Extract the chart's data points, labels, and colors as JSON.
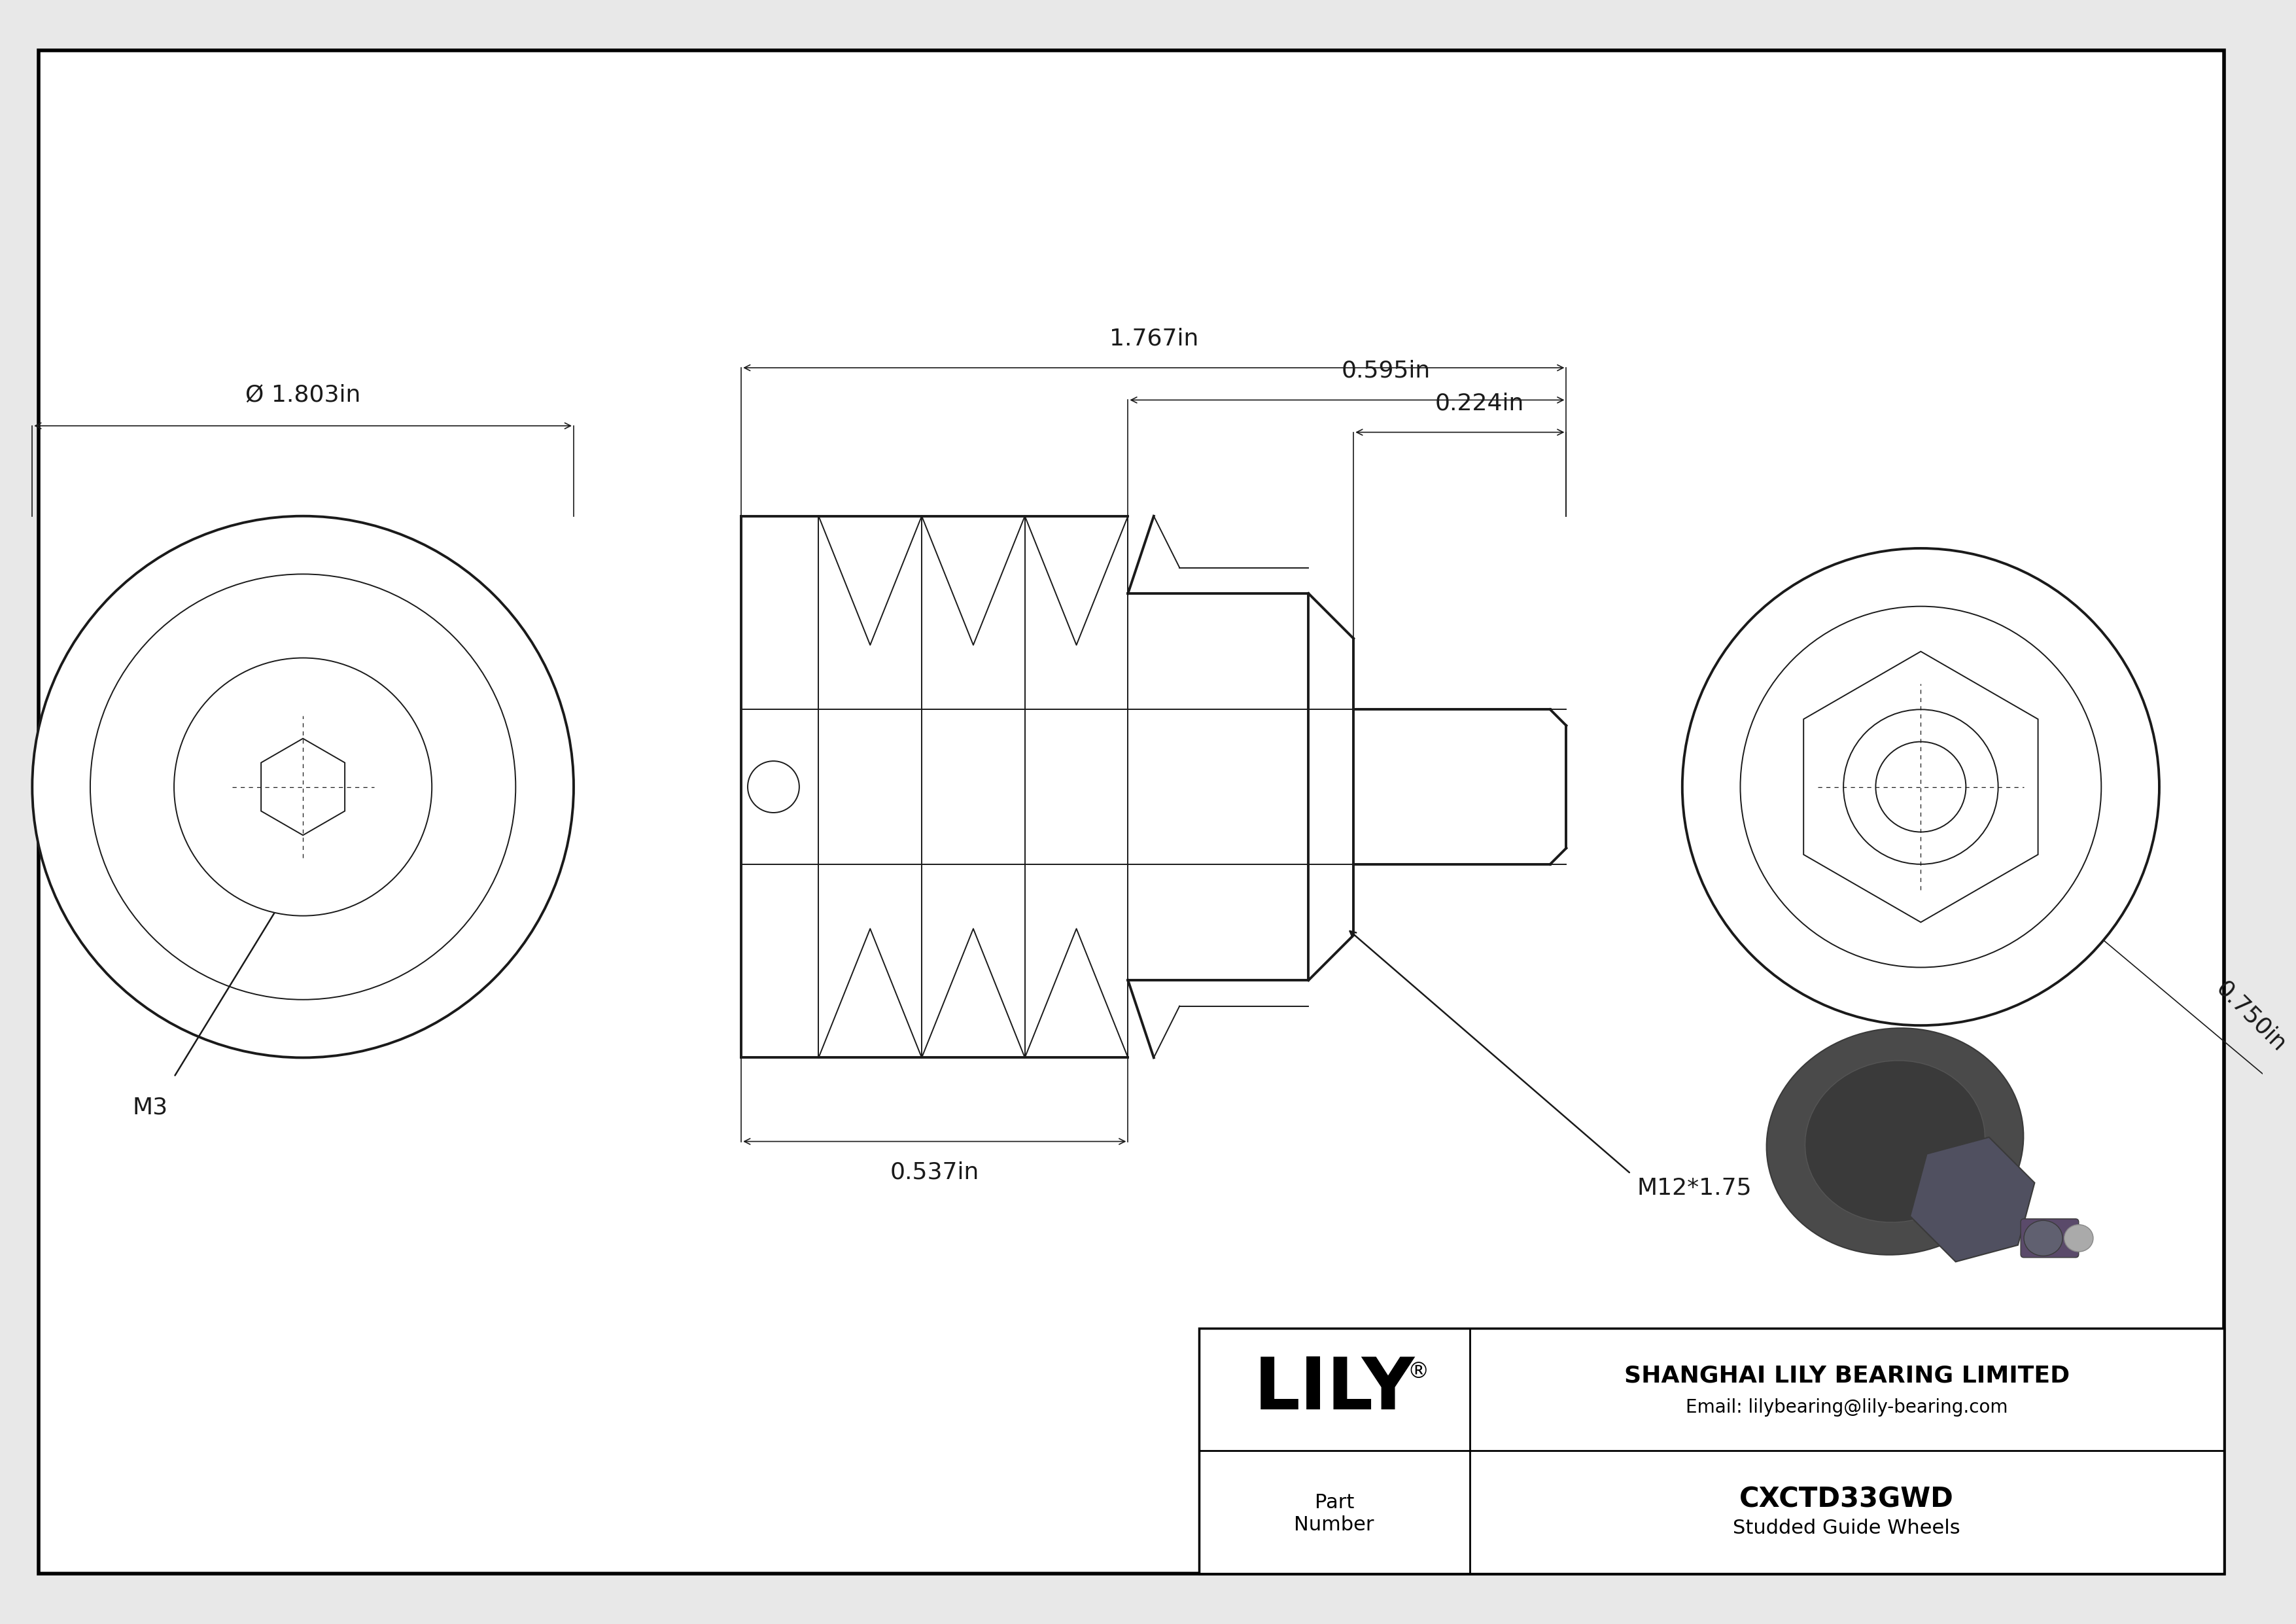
{
  "bg_color": "#e8e8e8",
  "drawing_bg": "#ffffff",
  "line_color": "#1a1a1a",
  "border_color": "#000000",
  "company": "SHANGHAI LILY BEARING LIMITED",
  "email": "Email: lilybearing@lily-bearing.com",
  "part_number_label": "Part\nNumber",
  "part_number": "CXCTD33GWD",
  "part_desc": "Studded Guide Wheels",
  "dim_diameter": "Ø 1.803in",
  "dim_width_total": "1.767in",
  "dim_width_stud": "0.224in",
  "dim_width_hex": "0.595in",
  "dim_width_groove": "0.537in",
  "dim_thread": "M12*1.75",
  "dim_m3": "M3",
  "dim_height": "0.750in",
  "lw_thick": 2.8,
  "lw_thin": 1.4,
  "lw_dim": 1.2,
  "lw_border": 4.0,
  "font_dim": 26,
  "font_label": 22,
  "font_logo": 80,
  "font_company": 26,
  "font_email": 20,
  "font_pn": 30,
  "font_pdesc": 22
}
